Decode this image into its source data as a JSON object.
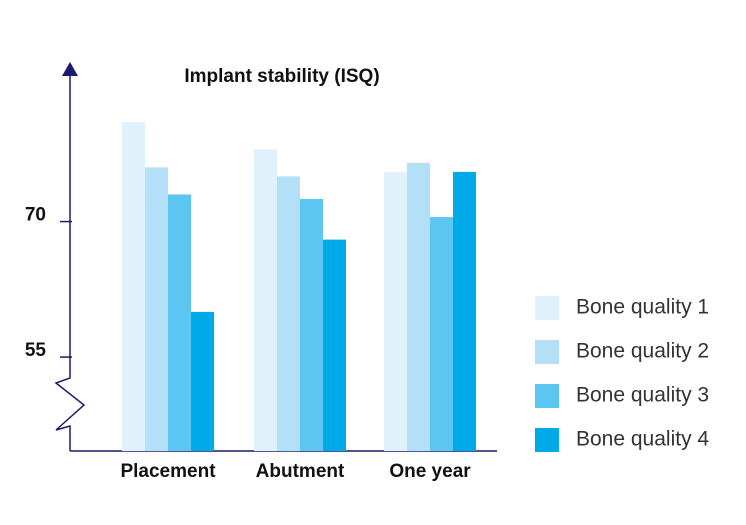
{
  "chart_data": {
    "type": "bar",
    "title": "Implant stability (ISQ)",
    "categories": [
      "Placement",
      "Abutment",
      "One year"
    ],
    "series": [
      {
        "name": "Bone quality 1",
        "color": "#dff1fb",
        "values": [
          81,
          78,
          75.5
        ]
      },
      {
        "name": "Bone quality 2",
        "color": "#b3e0f7",
        "values": [
          76,
          75,
          76.5
        ]
      },
      {
        "name": "Bone quality 3",
        "color": "#5cc6f2",
        "values": [
          73,
          72.5,
          70.5
        ]
      },
      {
        "name": "Bone quality 4",
        "color": "#00a9e8",
        "values": [
          60,
          68,
          75.5
        ]
      }
    ],
    "ylim": [
      44.6,
      87
    ],
    "yticks": [
      55,
      70
    ],
    "axis_break": true,
    "legend": "right"
  }
}
